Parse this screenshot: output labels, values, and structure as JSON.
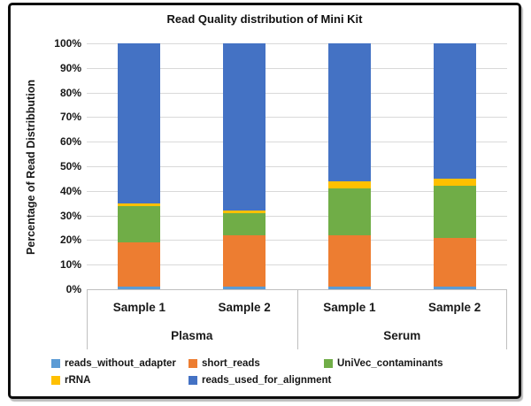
{
  "title": "Read Quality distribution of Mini Kit",
  "y_axis": {
    "label": "Percentage of Read Distribbution",
    "ticks": [
      "100%",
      "90%",
      "80%",
      "70%",
      "60%",
      "50%",
      "40%",
      "30%",
      "20%",
      "10%",
      "0%"
    ]
  },
  "groups": [
    {
      "label": "Plasma",
      "samples": [
        "Sample 1",
        "Sample 2"
      ]
    },
    {
      "label": "Serum",
      "samples": [
        "Sample 1",
        "Sample 2"
      ]
    }
  ],
  "colors": {
    "grid": "#d9d9d9",
    "axis": "#bfbfbf",
    "frame_border": "#0d0d0d"
  },
  "chart_data": {
    "type": "bar",
    "stacked": true,
    "title": "Read Quality distribution of Mini Kit",
    "xlabel": "",
    "ylabel": "Percentage of Read Distribbution",
    "ylim": [
      0,
      100
    ],
    "grid": true,
    "legend_position": "bottom",
    "categories": [
      "Plasma Sample 1",
      "Plasma Sample 2",
      "Serum Sample 1",
      "Serum Sample 2"
    ],
    "series": [
      {
        "name": "reads_without_adapter",
        "color": "#5B9BD5",
        "values": [
          1,
          1,
          1,
          1
        ]
      },
      {
        "name": "short_reads",
        "color": "#ED7D31",
        "values": [
          18,
          21,
          21,
          20
        ]
      },
      {
        "name": "UniVec_contaminants",
        "color": "#70AD47",
        "values": [
          15,
          9,
          19,
          21
        ]
      },
      {
        "name": "rRNA",
        "color": "#FFC000",
        "values": [
          1,
          1,
          3,
          3
        ]
      },
      {
        "name": "reads_used_for_alignment",
        "color": "#4472C4",
        "values": [
          65,
          68,
          56,
          55
        ]
      }
    ]
  }
}
